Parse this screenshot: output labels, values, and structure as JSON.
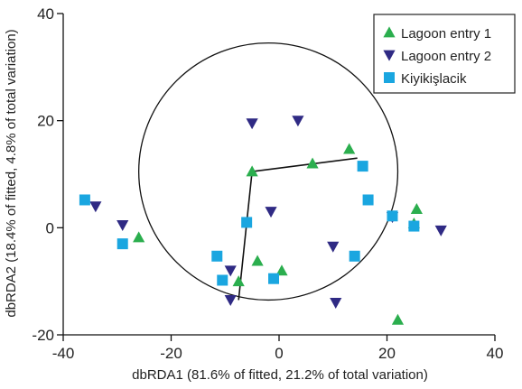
{
  "chart_data": {
    "type": "scatter",
    "title": "",
    "xlabel": "dbRDA1 (81.6% of fitted, 21.2% of total variation)",
    "ylabel": "dbRDA2 (18.4% of fitted, 4.8% of total variation)",
    "xlim": [
      -40,
      40
    ],
    "ylim": [
      -20,
      40
    ],
    "xticks": [
      -40,
      -20,
      0,
      20,
      40
    ],
    "yticks": [
      -20,
      0,
      20,
      40
    ],
    "grid": false,
    "legend_position": "top-right",
    "series": [
      {
        "name": "Lagoon entry 1",
        "marker": "triangle-up",
        "color": "#2bae4e",
        "points": [
          [
            -5,
            10.5
          ],
          [
            6.2,
            12
          ],
          [
            13,
            14.7
          ],
          [
            -26,
            -1.8
          ],
          [
            -4,
            -6.2
          ],
          [
            -7.5,
            -10
          ],
          [
            0.5,
            -8
          ],
          [
            22,
            -17.2
          ],
          [
            25.5,
            3.5
          ],
          [
            25,
            0.8
          ]
        ]
      },
      {
        "name": "Lagoon entry 2",
        "marker": "triangle-down",
        "color": "#2f2a84",
        "points": [
          [
            -5,
            19.5
          ],
          [
            3.5,
            20
          ],
          [
            -34,
            4
          ],
          [
            -29,
            0.5
          ],
          [
            -1.5,
            3
          ],
          [
            -9,
            -8
          ],
          [
            -9,
            -13.5
          ],
          [
            10,
            -3.5
          ],
          [
            10.5,
            -14
          ],
          [
            21,
            2
          ],
          [
            30,
            -0.5
          ]
        ]
      },
      {
        "name": "Kiyikişlacik",
        "marker": "square",
        "color": "#1aa6e0",
        "points": [
          [
            -36,
            5.2
          ],
          [
            -29,
            -3
          ],
          [
            -6,
            1
          ],
          [
            -11.5,
            -5.3
          ],
          [
            -10.5,
            -9.8
          ],
          [
            -1,
            -9.5
          ],
          [
            15.5,
            11.5
          ],
          [
            16.5,
            5.2
          ],
          [
            21,
            2.2
          ],
          [
            25,
            0.3
          ],
          [
            14,
            -5.3
          ]
        ]
      }
    ],
    "circle": {
      "center": [
        -2,
        10.5
      ],
      "radius": 24
    },
    "vectors": [
      {
        "from": [
          -5,
          10.5
        ],
        "to": [
          14.5,
          13
        ]
      },
      {
        "from": [
          -5,
          10.5
        ],
        "to": [
          -7.5,
          -13.5
        ]
      }
    ]
  }
}
